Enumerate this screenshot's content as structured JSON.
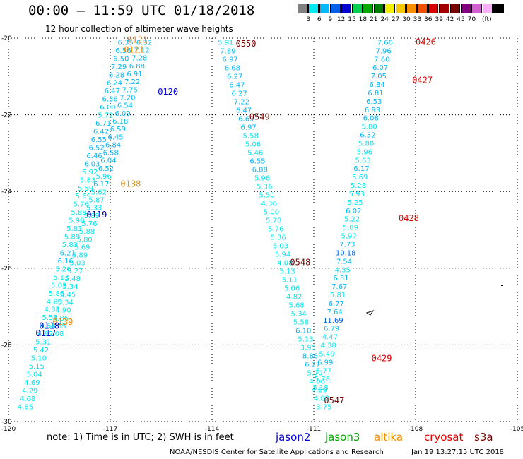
{
  "title": "00:00 – 11:59 UTC 01/18/2018",
  "subtitle": "12 hour collection of altimeter wave heights",
  "legend": {
    "swatch_colors": [
      "#808080",
      "#00e8f0",
      "#00b8f8",
      "#0060e8",
      "#0000d0",
      "#00d050",
      "#00a800",
      "#008000",
      "#f0f000",
      "#f8c800",
      "#f89000",
      "#f05000",
      "#d80000",
      "#a00000",
      "#780000",
      "#800080",
      "#d060d0",
      "#f8b0f8",
      "#000000"
    ],
    "labels": [
      "3",
      "6",
      "9",
      "12",
      "15",
      "18",
      "21",
      "24",
      "27",
      "30",
      "33",
      "36",
      "39",
      "42",
      "45",
      "70",
      "(ft)"
    ]
  },
  "chart_data": {
    "type": "map",
    "x_ticks": [
      "-120",
      "-117",
      "-114",
      "-111",
      "-108",
      "-105"
    ],
    "y_ticks": [
      "-20",
      "-22",
      "-24",
      "-26",
      "-28",
      "-30"
    ],
    "xlim": [
      -120,
      -105
    ],
    "ylim": [
      -30,
      -20
    ],
    "grid": true,
    "tracks": [
      {
        "name": "A",
        "lon_top": -116.55,
        "lat_top": -20.1,
        "lon_bot": -119.5,
        "lat_bot": -29.6,
        "values": [
          "6.35",
          "6.56",
          "6.50",
          "7.29",
          "6.28",
          "6.24",
          "6.47",
          "6.36",
          "6.00",
          "5.72",
          "6.71",
          "6.42",
          "6.55",
          "6.52",
          "6.46",
          "6.03",
          "5.92",
          "5.83",
          "5.59",
          "5.69",
          "5.76",
          "5.88",
          "5.90",
          "5.83",
          "5.89",
          "5.83",
          "6.21",
          "6.16",
          "5.26",
          "5.13",
          "5.03",
          "5.86",
          "4.89",
          "4.85",
          "5.53",
          "4.66",
          "4.92",
          "5.31",
          "5.42",
          "5.10",
          "5.15",
          "5.04",
          "4.69",
          "4.29",
          "4.68",
          "4.65"
        ]
      },
      {
        "name": "B",
        "lon_top": -116.0,
        "lat_top": -20.1,
        "lon_bot": -118.6,
        "lat_bot": -27.7,
        "values": [
          "6.32",
          "7.12",
          "7.28",
          "6.88",
          "6.91",
          "7.22",
          "7.75",
          "7.20",
          "6.54",
          "6.09",
          "6.18",
          "6.59",
          "6.45",
          "6.84",
          "6.58",
          "6.04",
          "6.52",
          "5.96",
          "6.17",
          "5.62",
          "5.87",
          "5.33",
          "5.89",
          "5.76",
          "5.88",
          "5.80",
          "5.69",
          "5.89",
          "5.03",
          "5.27",
          "5.48",
          "5.34",
          "5.45",
          "5.34",
          "4.90",
          "4.86",
          "4.85",
          "5.08"
        ]
      },
      {
        "name": "C",
        "lon_top": -113.6,
        "lat_top": -20.1,
        "lon_bot": -110.7,
        "lat_bot": -29.6,
        "values": [
          "5.91",
          "7.89",
          "6.97",
          "6.68",
          "6.27",
          "6.47",
          "6.27",
          "7.22",
          "6.47",
          "6.69",
          "6.97",
          "5.58",
          "5.06",
          "5.46",
          "6.55",
          "6.88",
          "5.96",
          "5.36",
          "5.50",
          "4.36",
          "5.00",
          "5.78",
          "5.76",
          "5.36",
          "5.03",
          "5.94",
          "4.08",
          "5.13",
          "5.11",
          "5.06",
          "4.82",
          "5.68",
          "5.34",
          "5.58",
          "6.10",
          "5.13",
          "3.95",
          "8.86",
          "6.27",
          "5.70",
          "4.06",
          "4.89",
          "4.82",
          "3.75"
        ]
      },
      {
        "name": "D",
        "lon_top": -108.9,
        "lat_top": -20.1,
        "lon_bot": -110.8,
        "lat_bot": -29.1,
        "values": [
          "7.66",
          "7.96",
          "7.60",
          "6.07",
          "7.05",
          "6.84",
          "6.81",
          "6.53",
          "6.93",
          "6.08",
          "5.80",
          "6.32",
          "5.80",
          "5.96",
          "5.63",
          "6.17",
          "5.69",
          "5.28",
          "5.93",
          "5.25",
          "6.02",
          "5.22",
          "5.89",
          "5.97",
          "7.73",
          "10.18",
          "7.54",
          "4.35",
          "6.31",
          "7.67",
          "5.81",
          "6.77",
          "7.64",
          "11.69",
          "6.79",
          "4.47",
          "4.38",
          "5.49",
          "6.99",
          "5.77",
          "5.78",
          "5.18"
        ]
      }
    ],
    "time_labels": [
      {
        "text": "0121",
        "lon": -116.5,
        "lat": -20.05,
        "color": "#f08c00"
      },
      {
        "text": "0121",
        "lon": -116.6,
        "lat": -20.3,
        "color": "#f08c00"
      },
      {
        "text": "0120",
        "lon": -115.6,
        "lat": -21.4,
        "color": "#0000c8"
      },
      {
        "text": "0138",
        "lon": -116.7,
        "lat": -23.8,
        "color": "#f08c00"
      },
      {
        "text": "0119",
        "lon": -117.7,
        "lat": -24.6,
        "color": "#0000c8"
      },
      {
        "text": "0139",
        "lon": -118.7,
        "lat": -27.4,
        "color": "#f08c00"
      },
      {
        "text": "0118",
        "lon": -119.1,
        "lat": -27.5,
        "color": "#0000c8"
      },
      {
        "text": "0117",
        "lon": -119.2,
        "lat": -27.7,
        "color": "#0000c8"
      },
      {
        "text": "0550",
        "lon": -113.3,
        "lat": -20.15,
        "color": "#780000"
      },
      {
        "text": "0549",
        "lon": -112.9,
        "lat": -22.05,
        "color": "#780000"
      },
      {
        "text": "0548",
        "lon": -111.7,
        "lat": -25.85,
        "color": "#780000"
      },
      {
        "text": "0547",
        "lon": -110.7,
        "lat": -29.45,
        "color": "#780000"
      },
      {
        "text": "0426",
        "lon": -108.0,
        "lat": -20.1,
        "color": "#e00000"
      },
      {
        "text": "0427",
        "lon": -108.1,
        "lat": -21.1,
        "color": "#e00000"
      },
      {
        "text": "0428",
        "lon": -108.5,
        "lat": -24.7,
        "color": "#e00000"
      },
      {
        "text": "0429",
        "lon": -109.3,
        "lat": -28.35,
        "color": "#e00000"
      }
    ]
  },
  "footer": {
    "note": "note: 1) Time is in UTC; 2) SWH is in feet",
    "satellites": [
      {
        "label": "jason2",
        "color": "#0000d8"
      },
      {
        "label": "jason3",
        "color": "#00a800"
      },
      {
        "label": "altika",
        "color": "#f08c00"
      },
      {
        "label": "cryosat",
        "color": "#e00000"
      },
      {
        "label": "s3a",
        "color": "#780000"
      }
    ],
    "credit": "NOAA/NESDIS Center for Satellite Applications and Research",
    "timestamp": "Jan 19 13:27:15 UTC 2018"
  }
}
